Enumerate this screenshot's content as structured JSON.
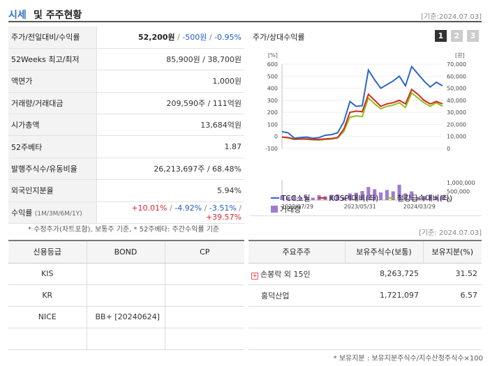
{
  "header": {
    "title_blue": "시세",
    "title_rest": "및 주주현황",
    "date": "[기준:2024.07.03]"
  },
  "quote": {
    "price_label": "주가/전일대비/수익률",
    "price": "52,200원",
    "sep1": "/",
    "change": "-500원",
    "sep2": "/",
    "change_pct": "-0.95%",
    "rows": [
      {
        "label": "52Weeks 최고/최저",
        "value": "85,900원 / 38,700원"
      },
      {
        "label": "액면가",
        "value": "1,000원"
      },
      {
        "label": "거래량/거래대금",
        "value": "209,590주 / 111억원"
      },
      {
        "label": "시가총액",
        "value": "13,684억원"
      },
      {
        "label": "52주베타",
        "value": "1.87"
      },
      {
        "label": "발행주식수/유동비율",
        "value": "26,213,697주 / 68.48%"
      },
      {
        "label": "외국인지분율",
        "value": "5.94%"
      }
    ],
    "return_label": "수익률",
    "return_periods": "(1M/3M/6M/1Y)",
    "r1": "+10.01%",
    "r2": "-4.92%",
    "r3": "-3.51%",
    "r4": "+39.57%",
    "rsep": "/",
    "note": "* 수정주가(차트포함), 보통주 기준, * 52주베타: 주간수익률 기준"
  },
  "chart": {
    "title": "주가/상대수익률",
    "tabs": [
      "1",
      "2",
      "3"
    ],
    "active_tab": 0
  },
  "chart_data": {
    "type": "line",
    "y_left_unit": "[%]",
    "y_right_unit": "[원]",
    "y_left_ticks": [
      "600",
      "500",
      "400",
      "300",
      "200",
      "100",
      "0",
      "-100"
    ],
    "y_right_ticks": [
      "70,000",
      "60,000",
      "50,000",
      "40,000",
      "30,000",
      "20,000",
      "10,000",
      "0"
    ],
    "vol_ticks": [
      "1,000,000",
      "500,000",
      "0"
    ],
    "x_ticks": [
      "2022/07/29",
      "2023/05/31",
      "2024/03/29"
    ],
    "x_tick_pos": [
      0,
      0.39,
      0.76
    ],
    "ylim_left": [
      -100,
      600
    ],
    "ylim_vol": [
      0,
      1000000
    ],
    "series": [
      {
        "name": "TCC스틸",
        "color": "#2a66c9",
        "values": [
          40,
          30,
          -15,
          -10,
          -5,
          -15,
          -10,
          10,
          15,
          30,
          120,
          290,
          250,
          255,
          550,
          470,
          400,
          430,
          460,
          500,
          420,
          580,
          520,
          460,
          410,
          450,
          420
        ]
      },
      {
        "name": "KOSPI대비(좌)",
        "color": "#d42a1e",
        "values": [
          -5,
          -10,
          -22,
          -20,
          -20,
          -24,
          -25,
          -20,
          -18,
          -10,
          60,
          200,
          210,
          205,
          350,
          300,
          250,
          270,
          280,
          300,
          270,
          390,
          350,
          300,
          270,
          290,
          270
        ]
      },
      {
        "name": "철강금속대비(좌)",
        "color": "#8fbf1a",
        "values": [
          -5,
          -12,
          -25,
          -22,
          -24,
          -28,
          -30,
          -25,
          -22,
          -12,
          40,
          160,
          170,
          165,
          320,
          270,
          230,
          250,
          260,
          280,
          240,
          360,
          320,
          280,
          250,
          280,
          250
        ]
      }
    ],
    "volume": {
      "name": "거래량",
      "color": "#a07bd0",
      "values": [
        250000,
        180000,
        260000,
        150000,
        200000,
        140000,
        280000,
        220000,
        300000,
        330000,
        180000,
        380000,
        420000,
        520000,
        750000,
        620000,
        440000,
        580000,
        500000,
        880000,
        380000,
        500000,
        160000,
        220000,
        300000,
        200000,
        280000
      ]
    }
  },
  "credit": {
    "headers": [
      "신용등급",
      "BOND",
      "CP"
    ],
    "rows": [
      {
        "agency": "KIS",
        "bond": "",
        "cp": ""
      },
      {
        "agency": "KR",
        "bond": "",
        "cp": ""
      },
      {
        "agency": "NICE",
        "bond": "BB+ [20240624]",
        "cp": ""
      },
      {
        "agency": "",
        "bond": "",
        "cp": ""
      }
    ]
  },
  "holders": {
    "date": "[기준: 2024.07.03]",
    "headers": [
      "주요주주",
      "보유주식수(보통)",
      "보유지분(%)"
    ],
    "rows": [
      {
        "name": "손봉락 외 15인",
        "shares": "8,263,725",
        "pct": "31.52",
        "expand": "+"
      },
      {
        "name": "홍덕산업",
        "shares": "1,721,097",
        "pct": "6.57",
        "expand": ""
      },
      {
        "name": "",
        "shares": "",
        "pct": "",
        "expand": ""
      },
      {
        "name": "",
        "shares": "",
        "pct": "",
        "expand": ""
      }
    ],
    "note": "* 보유지분 : 보유지분주식수/지수산정주식수×100"
  }
}
